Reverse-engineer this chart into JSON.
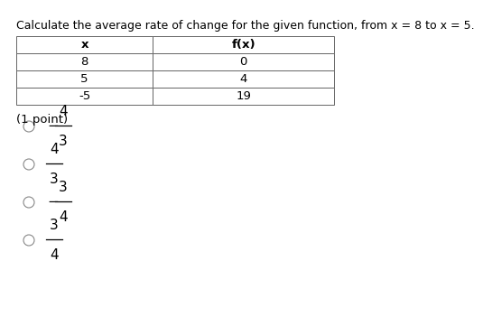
{
  "title": "Calculate the average rate of change for the given function, from x = 8 to x = 5.",
  "table_headers": [
    "x",
    "f(x)"
  ],
  "table_rows": [
    [
      "8",
      "0"
    ],
    [
      "5",
      "4"
    ],
    [
      "-5",
      "19"
    ]
  ],
  "point_label": "(1 point)",
  "options": [
    [
      "-",
      "4",
      "3"
    ],
    [
      "",
      "4",
      "3"
    ],
    [
      "-",
      "3",
      "4"
    ],
    [
      "",
      "3",
      "4"
    ]
  ],
  "bg_color": "#ffffff",
  "text_color": "#000000",
  "title_fontsize": 9.0,
  "table_fontsize": 9.5,
  "option_fontsize": 11.0,
  "point_fontsize": 9.5
}
